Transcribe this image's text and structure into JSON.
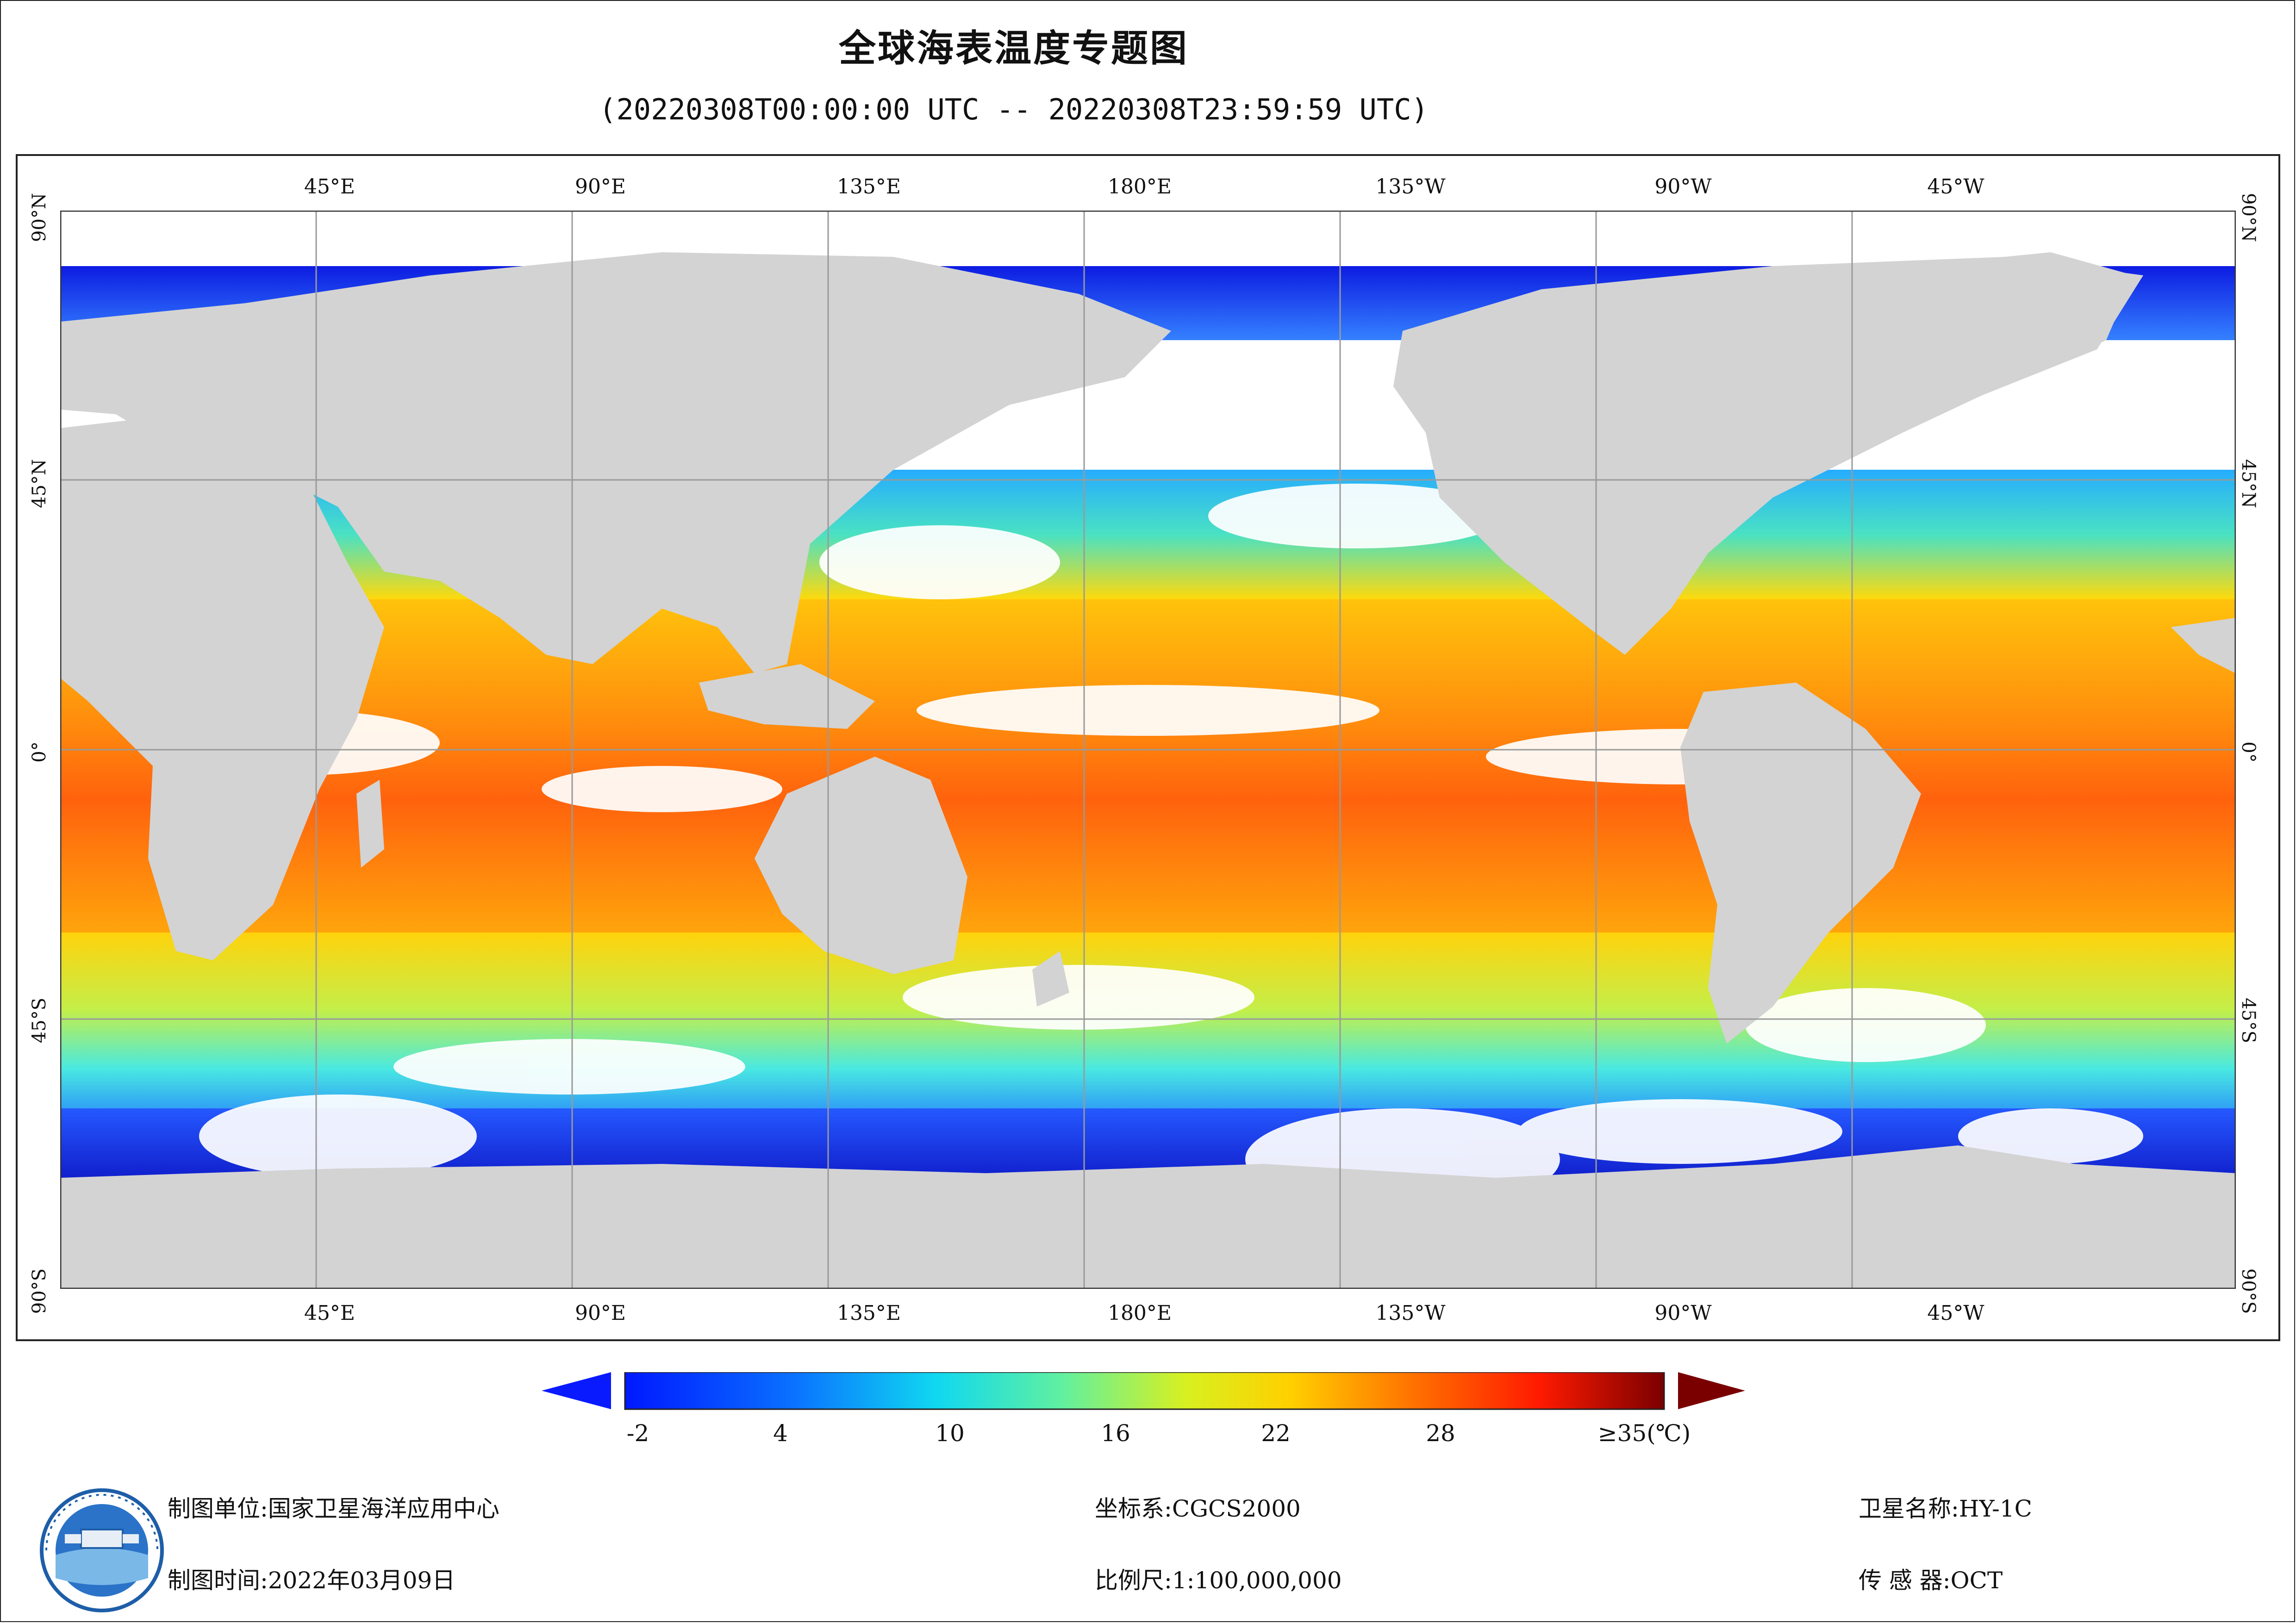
{
  "title": "全球海表温度专题图",
  "subtitle": "(20220308T00:00:00 UTC -- 20220308T23:59:59 UTC)",
  "map": {
    "top_lon_labels": [
      "45°E",
      "90°E",
      "135°E",
      "180°E",
      "135°W",
      "90°W",
      "45°W"
    ],
    "bottom_lon_labels": [
      "45°E",
      "90°E",
      "135°E",
      "180°E",
      "135°W",
      "90°W",
      "45°W"
    ],
    "lat_labels": [
      "90°N",
      "45°N",
      "0°",
      "45°S",
      "90°S"
    ],
    "colors": {
      "land": "#d3d3d3",
      "cloud_gap": "#ffffff",
      "grid": "#9a9a9a"
    }
  },
  "colorbar": {
    "ticks": [
      "-2",
      "4",
      "10",
      "16",
      "22",
      "28",
      "≥35(℃)"
    ],
    "min_value": -2,
    "max_value": 35,
    "unit": "℃",
    "low_extend_color": "#0a1aff",
    "high_extend_color": "#7a0000"
  },
  "footer": {
    "org_label": "制图单位:",
    "org_value": "国家卫星海洋应用中心",
    "time_label": "制图时间:",
    "time_value": "2022年03月09日",
    "crs_label": "坐标系:",
    "crs_value": "CGCS2000",
    "scale_label": "比例尺:",
    "scale_value": "1:100,000,000",
    "satellite_label": "卫星名称:",
    "satellite_value": "HY-1C",
    "sensor_label": "传 感 器:",
    "sensor_value": "OCT"
  }
}
